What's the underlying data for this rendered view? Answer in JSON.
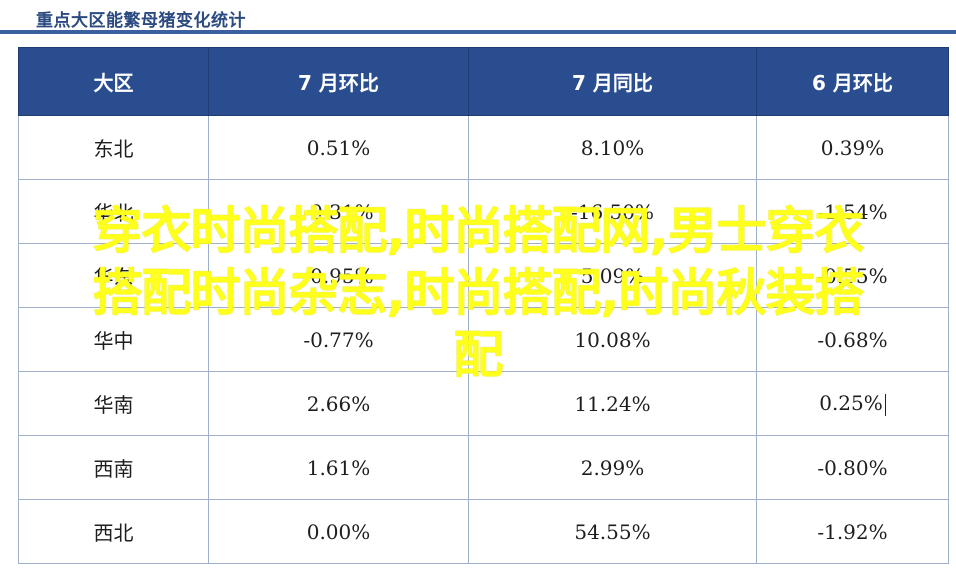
{
  "document": {
    "title": "重点大区能繁母猪变化统计"
  },
  "table": {
    "headers": [
      "大区",
      "7 月环比",
      "7 月同比",
      "6 月环比"
    ],
    "rows": [
      {
        "region": "东北",
        "jul_mom": "0.51%",
        "jul_yoy": "8.10%",
        "jun_mom": "0.39%"
      },
      {
        "region": "华北",
        "jul_mom": "-0.31%",
        "jul_yoy": "-16.50%",
        "jun_mom": "-1.54%"
      },
      {
        "region": "华东",
        "jul_mom": "-0.95%",
        "jul_yoy": "5.09%",
        "jun_mom": "-0.55%"
      },
      {
        "region": "华中",
        "jul_mom": "-0.77%",
        "jul_yoy": "10.08%",
        "jun_mom": "-0.68%"
      },
      {
        "region": "华南",
        "jul_mom": "2.66%",
        "jul_yoy": "11.24%",
        "jun_mom": "0.25%"
      },
      {
        "region": "西南",
        "jul_mom": "1.61%",
        "jul_yoy": "2.99%",
        "jun_mom": "-0.80%"
      },
      {
        "region": "西北",
        "jul_mom": "0.00%",
        "jul_yoy": "54.55%",
        "jun_mom": "-1.92%"
      }
    ]
  },
  "colors": {
    "header_bg": "#2a4d8f",
    "positive": "#e0201c",
    "negative": "#1f9a2e",
    "watermark": "#ffff1c"
  },
  "watermark": {
    "lines": [
      "穿衣时尚搭配,时尚搭配网,男士穿衣",
      "搭配时尚杂志,时尚搭配,时尚秋装搭",
      "配"
    ]
  }
}
